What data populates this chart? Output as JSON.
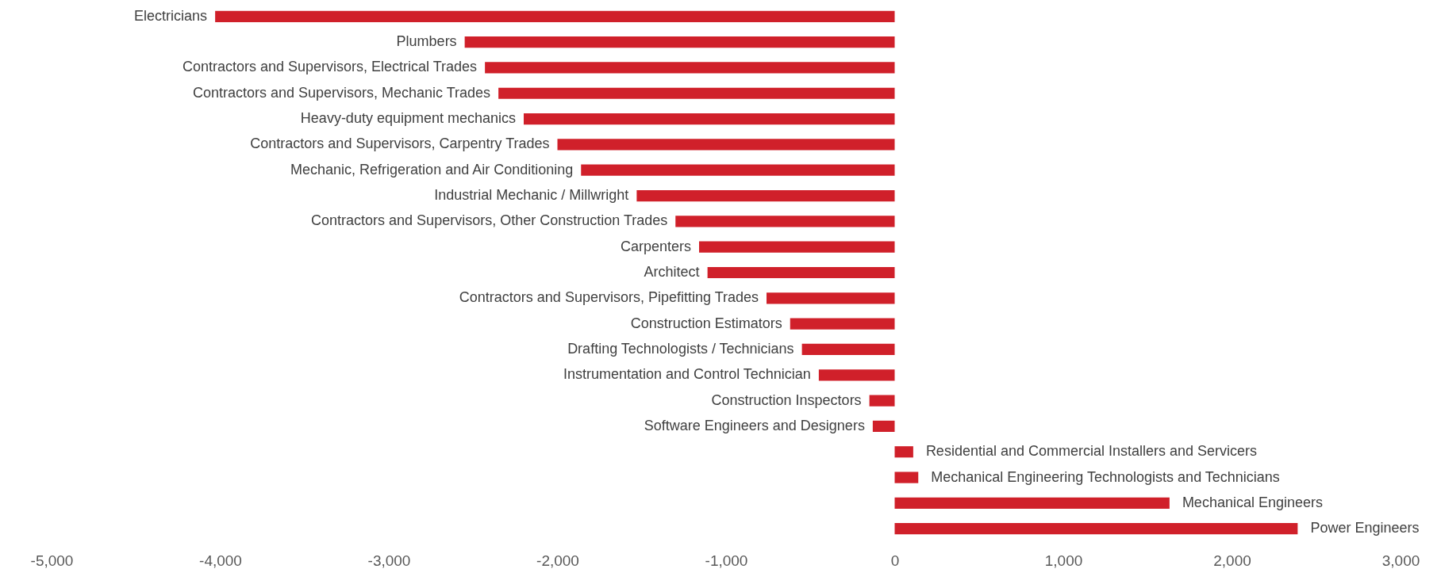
{
  "chart_data": {
    "type": "bar",
    "orientation": "horizontal",
    "categories": [
      "Electricians",
      "Plumbers",
      "Contractors and Supervisors, Electrical Trades",
      "Contractors and Supervisors, Mechanic Trades",
      "Heavy-duty equipment mechanics",
      "Contractors and Supervisors, Carpentry Trades",
      "Mechanic, Refrigeration and Air Conditioning",
      "Industrial Mechanic / Millwright",
      "Contractors and Supervisors, Other Construction Trades",
      "Carpenters",
      "Architect",
      "Contractors and Supervisors, Pipefitting Trades",
      "Construction Estimators",
      "Drafting Technologists / Technicians",
      "Instrumentation and Control Technician",
      "Construction Inspectors",
      "Software Engineers and Designers",
      "Residential and Commercial Installers and Servicers",
      "Mechanical Engineering Technologists and Technicians",
      "Mechanical Engineers",
      "Power Engineers"
    ],
    "values": [
      -4030,
      -2550,
      -2430,
      -2350,
      -2200,
      -2000,
      -1860,
      -1530,
      -1300,
      -1160,
      -1110,
      -760,
      -620,
      -550,
      -450,
      -150,
      -130,
      110,
      140,
      1630,
      2390
    ],
    "color": "#d0202a",
    "xlim": [
      -5000,
      3000
    ],
    "xticks": [
      {
        "value": -5000,
        "label": "-5,000"
      },
      {
        "value": -4000,
        "label": "-4,000"
      },
      {
        "value": -3000,
        "label": "-3,000"
      },
      {
        "value": -2000,
        "label": "-2,000"
      },
      {
        "value": -1000,
        "label": "-1,000"
      },
      0,
      {
        "value": 1000,
        "label": "1,000"
      },
      {
        "value": 2000,
        "label": "2,000"
      },
      {
        "value": 3000,
        "label": "3,000"
      }
    ],
    "grid": false
  }
}
